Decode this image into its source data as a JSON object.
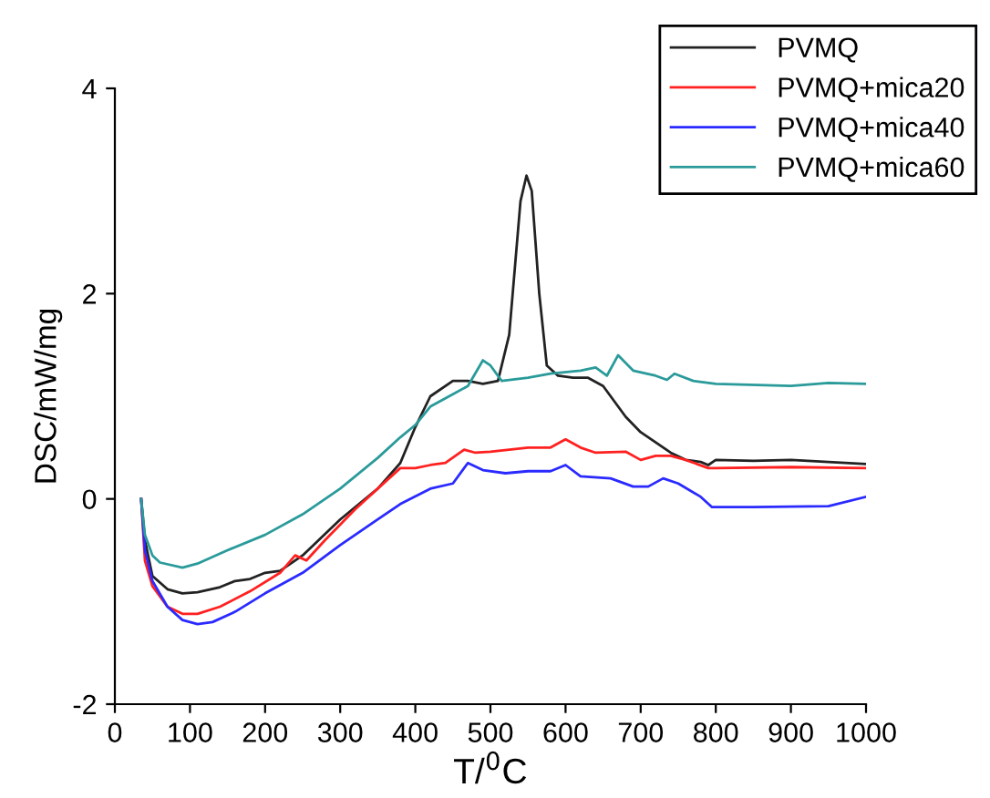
{
  "chart_data": {
    "type": "line",
    "xlabel": "T/$^{0}$C",
    "ylabel": "DSC/mW/mg",
    "xlim": [
      0,
      1000
    ],
    "ylim": [
      -2,
      4
    ],
    "xticks": [
      0,
      100,
      200,
      300,
      400,
      500,
      600,
      700,
      800,
      900,
      1000
    ],
    "yticks": [
      -2,
      0,
      2,
      4
    ],
    "grid": false,
    "legend": "top right",
    "marker": "none",
    "line_style": "solid",
    "series": [
      {
        "name": "PVMQ",
        "color": "#222222",
        "x": [
          35,
          40,
          50,
          70,
          90,
          110,
          140,
          160,
          180,
          200,
          220,
          250,
          300,
          350,
          380,
          400,
          420,
          450,
          470,
          490,
          510,
          525,
          540,
          548,
          555,
          565,
          575,
          590,
          610,
          630,
          650,
          680,
          700,
          740,
          760,
          780,
          790,
          800,
          850,
          900,
          1000
        ],
        "values": [
          0,
          -0.4,
          -0.75,
          -0.88,
          -0.92,
          -0.91,
          -0.86,
          -0.8,
          -0.78,
          -0.72,
          -0.7,
          -0.55,
          -0.2,
          0.1,
          0.35,
          0.7,
          1.0,
          1.15,
          1.15,
          1.12,
          1.15,
          1.6,
          2.9,
          3.15,
          3.0,
          2.0,
          1.3,
          1.2,
          1.18,
          1.18,
          1.1,
          0.8,
          0.65,
          0.45,
          0.38,
          0.36,
          0.33,
          0.38,
          0.37,
          0.38,
          0.34
        ]
      },
      {
        "name": "PVMQ+mica20",
        "color": "#ff2020",
        "x": [
          35,
          40,
          50,
          70,
          90,
          110,
          140,
          180,
          220,
          240,
          255,
          280,
          320,
          350,
          380,
          400,
          420,
          440,
          465,
          480,
          500,
          550,
          580,
          600,
          620,
          640,
          680,
          700,
          720,
          740,
          760,
          790,
          800,
          900,
          1000
        ],
        "values": [
          0,
          -0.6,
          -0.85,
          -1.05,
          -1.12,
          -1.12,
          -1.05,
          -0.9,
          -0.72,
          -0.55,
          -0.6,
          -0.4,
          -0.1,
          0.1,
          0.3,
          0.3,
          0.33,
          0.35,
          0.48,
          0.45,
          0.46,
          0.5,
          0.5,
          0.58,
          0.5,
          0.45,
          0.46,
          0.38,
          0.42,
          0.42,
          0.38,
          0.3,
          0.3,
          0.31,
          0.3
        ]
      },
      {
        "name": "PVMQ+mica40",
        "color": "#2a2aff",
        "x": [
          35,
          40,
          50,
          70,
          90,
          110,
          130,
          160,
          200,
          250,
          300,
          350,
          380,
          420,
          450,
          470,
          490,
          520,
          550,
          580,
          600,
          620,
          660,
          690,
          710,
          730,
          750,
          780,
          795,
          850,
          950,
          1000
        ],
        "values": [
          0,
          -0.5,
          -0.8,
          -1.05,
          -1.18,
          -1.22,
          -1.2,
          -1.1,
          -0.92,
          -0.72,
          -0.45,
          -0.2,
          -0.05,
          0.1,
          0.15,
          0.35,
          0.28,
          0.25,
          0.27,
          0.27,
          0.33,
          0.22,
          0.2,
          0.12,
          0.12,
          0.2,
          0.15,
          0.02,
          -0.08,
          -0.08,
          -0.07,
          0.02
        ]
      },
      {
        "name": "PVMQ+mica60",
        "color": "#2a9a9a",
        "x": [
          35,
          40,
          50,
          60,
          90,
          110,
          150,
          200,
          250,
          300,
          350,
          380,
          400,
          420,
          450,
          470,
          490,
          500,
          515,
          550,
          580,
          620,
          640,
          655,
          670,
          690,
          720,
          735,
          745,
          770,
          800,
          900,
          950,
          1000
        ],
        "values": [
          0,
          -0.35,
          -0.55,
          -0.62,
          -0.67,
          -0.63,
          -0.5,
          -0.35,
          -0.15,
          0.1,
          0.4,
          0.6,
          0.72,
          0.9,
          1.02,
          1.1,
          1.35,
          1.3,
          1.15,
          1.18,
          1.22,
          1.25,
          1.28,
          1.2,
          1.4,
          1.25,
          1.2,
          1.16,
          1.22,
          1.15,
          1.12,
          1.1,
          1.13,
          1.12
        ]
      }
    ]
  }
}
